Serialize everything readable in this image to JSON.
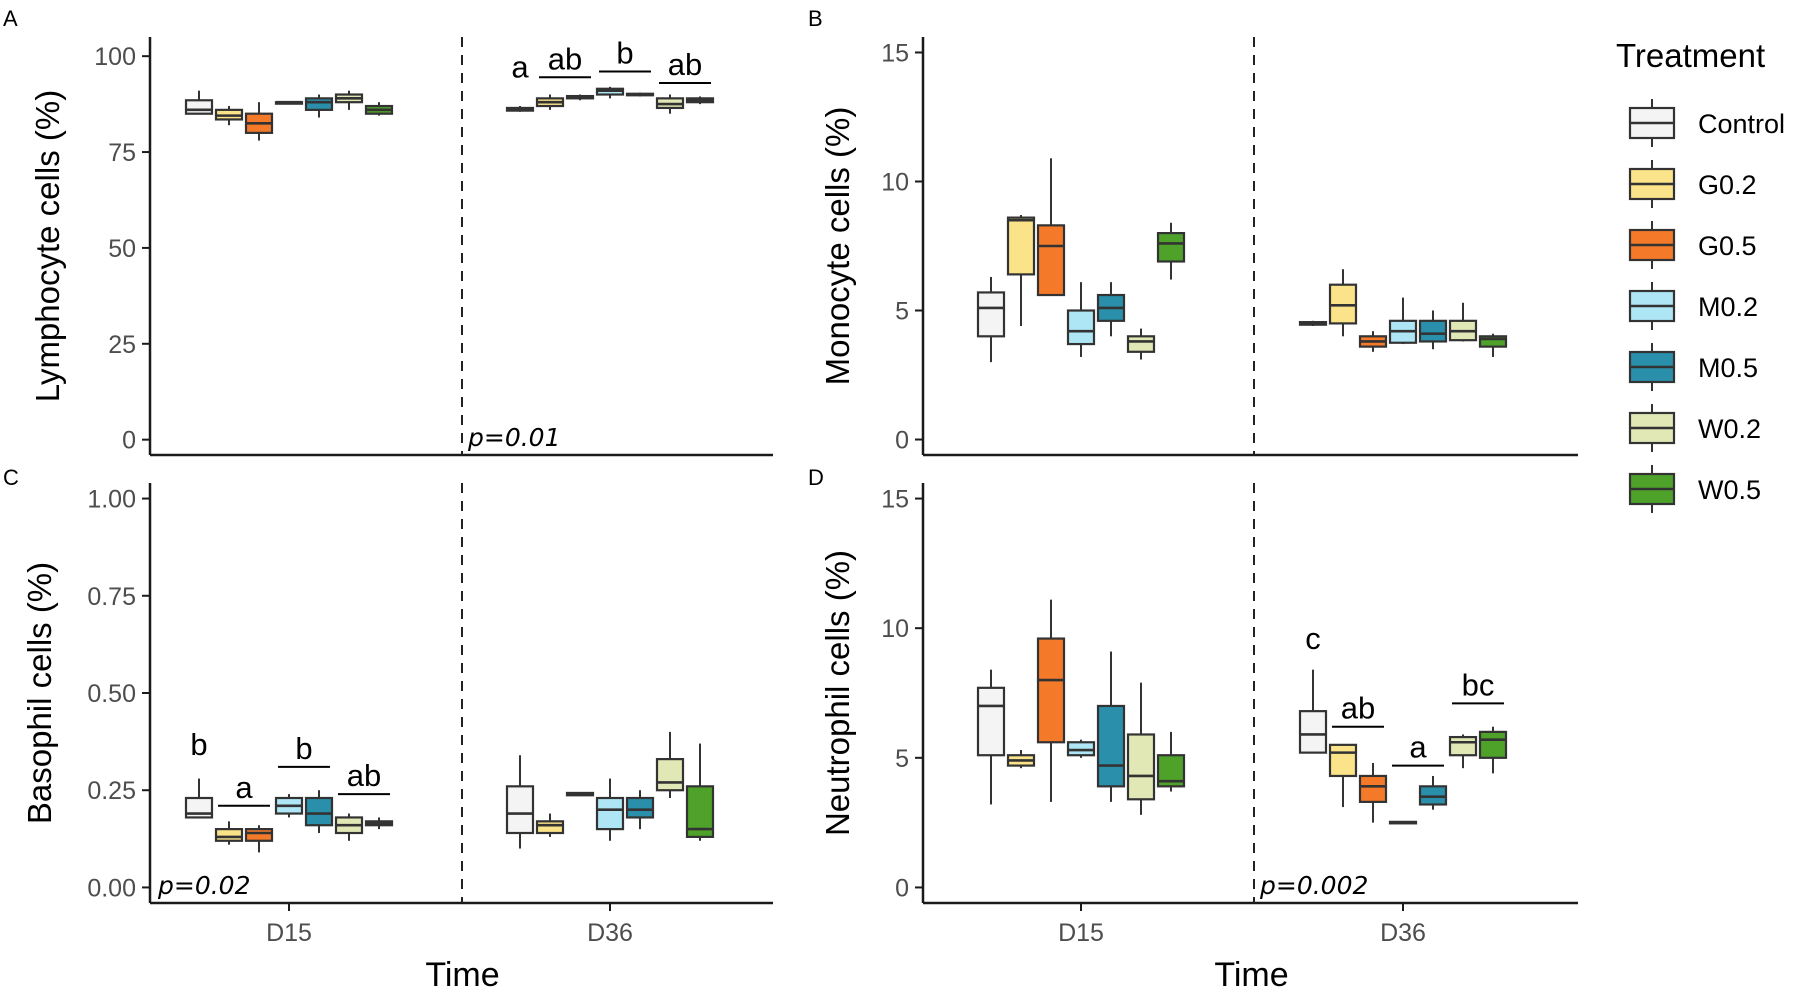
{
  "treatment_colors": {
    "Control": "#f4f4f4",
    "G0.2": "#fbe38a",
    "G0.5": "#f47a2a",
    "M0.2": "#aee6f5",
    "M0.5": "#2a8fab",
    "W0.2": "#e1e8b5",
    "W0.5": "#4ea22a"
  },
  "legend": {
    "title": "Treatment",
    "items": [
      "Control",
      "G0.2",
      "G0.5",
      "M0.2",
      "M0.5",
      "W0.2",
      "W0.5"
    ]
  },
  "chart_data": [
    {
      "panel": "A",
      "type": "boxplot",
      "ylabel": "Lymphocyte cells (%)",
      "xlabel": "",
      "ylim": [
        -4,
        105
      ],
      "yticks": [
        "0",
        "25",
        "50",
        "75",
        "100"
      ],
      "ytick_values": [
        0,
        25,
        50,
        75,
        100
      ],
      "categories": [
        "D15",
        "D36"
      ],
      "pvalue": "p=0.01",
      "pvalue_position": "bottom-right-of-divider",
      "series": [
        {
          "treatment": "Control",
          "D15": [
            85,
            85,
            86,
            88.5,
            91
          ],
          "D36": [
            85.5,
            85.8,
            86,
            86.5,
            87
          ]
        },
        {
          "treatment": "G0.2",
          "D15": [
            82,
            83.5,
            84.5,
            86,
            87
          ],
          "D36": [
            86,
            87,
            88,
            89,
            90
          ]
        },
        {
          "treatment": "G0.5",
          "D15": [
            78,
            80,
            82.5,
            85,
            88
          ],
          "D36": [
            88.5,
            89,
            89.3,
            89.6,
            90
          ]
        },
        {
          "treatment": "M0.2",
          "D15": [
            88,
            88,
            88,
            88,
            88
          ],
          "D36": [
            89,
            90,
            91,
            91.5,
            92
          ]
        },
        {
          "treatment": "M0.5",
          "D15": [
            84,
            86,
            88,
            89,
            90
          ],
          "D36": [
            89.5,
            89.8,
            90,
            90.2,
            90.5
          ]
        },
        {
          "treatment": "W0.2",
          "D15": [
            86,
            88,
            89,
            90,
            91
          ],
          "D36": [
            85,
            86.5,
            87.5,
            89,
            90
          ]
        },
        {
          "treatment": "W0.5",
          "D15": [
            84.5,
            85,
            86,
            87,
            88
          ],
          "D36": [
            87.5,
            88,
            88.5,
            89,
            89.5
          ]
        }
      ],
      "letters": [
        {
          "text": "a",
          "time": "D36",
          "from": "Control",
          "to": "Control",
          "y": 94.5
        },
        {
          "text": "ab",
          "time": "D36",
          "from": "G0.2",
          "to": "G0.5",
          "y": 94.5
        },
        {
          "text": "b",
          "time": "D36",
          "from": "M0.2",
          "to": "M0.5",
          "y": 96
        },
        {
          "text": "ab",
          "time": "D36",
          "from": "W0.2",
          "to": "W0.5",
          "y": 93
        }
      ]
    },
    {
      "panel": "B",
      "type": "boxplot",
      "ylabel": "Monocyte cells (%)",
      "xlabel": "",
      "ylim": [
        -0.6,
        15.6
      ],
      "yticks": [
        "0",
        "5",
        "10",
        "15"
      ],
      "ytick_values": [
        0,
        5,
        10,
        15
      ],
      "categories": [
        "D15",
        "D36"
      ],
      "pvalue": "",
      "series": [
        {
          "treatment": "Control",
          "D15": [
            3,
            4,
            5.1,
            5.7,
            6.3
          ],
          "D36": [
            4.4,
            4.45,
            4.5,
            4.55,
            4.6
          ]
        },
        {
          "treatment": "G0.2",
          "D15": [
            4.4,
            6.4,
            8.5,
            8.6,
            8.7
          ],
          "D36": [
            4,
            4.5,
            5.2,
            6,
            6.6
          ]
        },
        {
          "treatment": "G0.5",
          "D15": [
            5.6,
            5.6,
            7.5,
            8.3,
            10.9
          ],
          "D36": [
            3.4,
            3.6,
            3.8,
            4,
            4.2
          ]
        },
        {
          "treatment": "M0.2",
          "D15": [
            3.2,
            3.7,
            4.2,
            5,
            6.1
          ],
          "D36": [
            3.7,
            3.75,
            4.2,
            4.6,
            5.5
          ]
        },
        {
          "treatment": "M0.5",
          "D15": [
            4,
            4.6,
            5.1,
            5.6,
            6.1
          ],
          "D36": [
            3.5,
            3.8,
            4.1,
            4.6,
            5
          ]
        },
        {
          "treatment": "W0.2",
          "D15": [
            3.1,
            3.4,
            3.8,
            4,
            4.3
          ],
          "D36": [
            3.8,
            3.85,
            4.2,
            4.6,
            5.3
          ]
        },
        {
          "treatment": "W0.5",
          "D15": [
            6.2,
            6.9,
            7.6,
            8,
            8.4
          ],
          "D36": [
            3.2,
            3.6,
            3.9,
            4,
            4.1
          ]
        }
      ],
      "letters": []
    },
    {
      "panel": "C",
      "type": "boxplot",
      "ylabel": "Basophil cells (%)",
      "xlabel": "Time",
      "ylim": [
        -0.04,
        1.04
      ],
      "yticks": [
        "0.00",
        "0.25",
        "0.50",
        "0.75",
        "1.00"
      ],
      "ytick_values": [
        0,
        0.25,
        0.5,
        0.75,
        1
      ],
      "categories": [
        "D15",
        "D36"
      ],
      "pvalue": "p=0.02",
      "pvalue_position": "bottom-left",
      "series": [
        {
          "treatment": "Control",
          "D15": [
            0.18,
            0.18,
            0.19,
            0.23,
            0.28
          ],
          "D36": [
            0.1,
            0.14,
            0.19,
            0.26,
            0.34
          ]
        },
        {
          "treatment": "G0.2",
          "D15": [
            0.11,
            0.12,
            0.13,
            0.15,
            0.17
          ],
          "D36": [
            0.13,
            0.14,
            0.16,
            0.17,
            0.19
          ]
        },
        {
          "treatment": "G0.5",
          "D15": [
            0.09,
            0.12,
            0.14,
            0.15,
            0.16
          ],
          "D36": [
            0.235,
            0.237,
            0.24,
            0.243,
            0.245
          ]
        },
        {
          "treatment": "M0.2",
          "D15": [
            0.18,
            0.19,
            0.21,
            0.23,
            0.24
          ],
          "D36": [
            0.12,
            0.15,
            0.2,
            0.23,
            0.28
          ]
        },
        {
          "treatment": "M0.5",
          "D15": [
            0.14,
            0.16,
            0.19,
            0.23,
            0.25
          ],
          "D36": [
            0.15,
            0.18,
            0.2,
            0.23,
            0.25
          ]
        },
        {
          "treatment": "W0.2",
          "D15": [
            0.12,
            0.14,
            0.16,
            0.18,
            0.19
          ],
          "D36": [
            0.23,
            0.25,
            0.27,
            0.33,
            0.4
          ]
        },
        {
          "treatment": "W0.5",
          "D15": [
            0.15,
            0.16,
            0.165,
            0.17,
            0.18
          ],
          "D36": [
            0.12,
            0.13,
            0.15,
            0.26,
            0.37
          ]
        }
      ],
      "letters": [
        {
          "text": "b",
          "time": "D15",
          "from": "Control",
          "to": "Control",
          "y": 0.34
        },
        {
          "text": "a",
          "time": "D15",
          "from": "G0.2",
          "to": "G0.5",
          "y": 0.21
        },
        {
          "text": "b",
          "time": "D15",
          "from": "M0.2",
          "to": "M0.5",
          "y": 0.31
        },
        {
          "text": "ab",
          "time": "D15",
          "from": "W0.2",
          "to": "W0.5",
          "y": 0.24
        }
      ]
    },
    {
      "panel": "D",
      "type": "boxplot",
      "ylabel": "Neutrophil cells (%)",
      "xlabel": "Time",
      "ylim": [
        -0.6,
        15.6
      ],
      "yticks": [
        "0",
        "5",
        "10",
        "15"
      ],
      "ytick_values": [
        0,
        5,
        10,
        15
      ],
      "categories": [
        "D15",
        "D36"
      ],
      "pvalue": "p=0.002",
      "pvalue_position": "bottom-right-of-divider",
      "series": [
        {
          "treatment": "Control",
          "D15": [
            3.2,
            5.1,
            7,
            7.7,
            8.4
          ],
          "D36": [
            5.2,
            5.2,
            5.9,
            6.8,
            8.4
          ]
        },
        {
          "treatment": "G0.2",
          "D15": [
            4.6,
            4.7,
            4.9,
            5.1,
            5.3
          ],
          "D36": [
            3.1,
            4.3,
            5.2,
            5.5,
            5.5
          ]
        },
        {
          "treatment": "G0.5",
          "D15": [
            3.3,
            5.6,
            8,
            9.6,
            11.1
          ],
          "D36": [
            2.5,
            3.3,
            3.9,
            4.3,
            4.8
          ]
        },
        {
          "treatment": "M0.2",
          "D15": [
            5,
            5.1,
            5.3,
            5.6,
            5.7
          ],
          "D36": [
            2.45,
            2.48,
            2.5,
            2.53,
            2.55
          ]
        },
        {
          "treatment": "M0.5",
          "D15": [
            3.3,
            3.9,
            4.7,
            7,
            9.1
          ],
          "D36": [
            3,
            3.2,
            3.5,
            3.9,
            4.3
          ]
        },
        {
          "treatment": "W0.2",
          "D15": [
            2.8,
            3.4,
            4.3,
            5.9,
            7.9
          ],
          "D36": [
            4.6,
            5.1,
            5.6,
            5.8,
            5.9
          ]
        },
        {
          "treatment": "W0.5",
          "D15": [
            3.7,
            3.9,
            4.1,
            5.1,
            6
          ],
          "D36": [
            4.4,
            5,
            5.7,
            6,
            6.2
          ]
        }
      ],
      "letters": [
        {
          "text": "c",
          "time": "D36",
          "from": "Control",
          "to": "Control",
          "y": 9.2
        },
        {
          "text": "ab",
          "time": "D36",
          "from": "G0.2",
          "to": "G0.5",
          "y": 6.2
        },
        {
          "text": "a",
          "time": "D36",
          "from": "M0.2",
          "to": "M0.5",
          "y": 4.7
        },
        {
          "text": "bc",
          "time": "D36",
          "from": "W0.2",
          "to": "W0.5",
          "y": 7.1
        }
      ]
    }
  ]
}
